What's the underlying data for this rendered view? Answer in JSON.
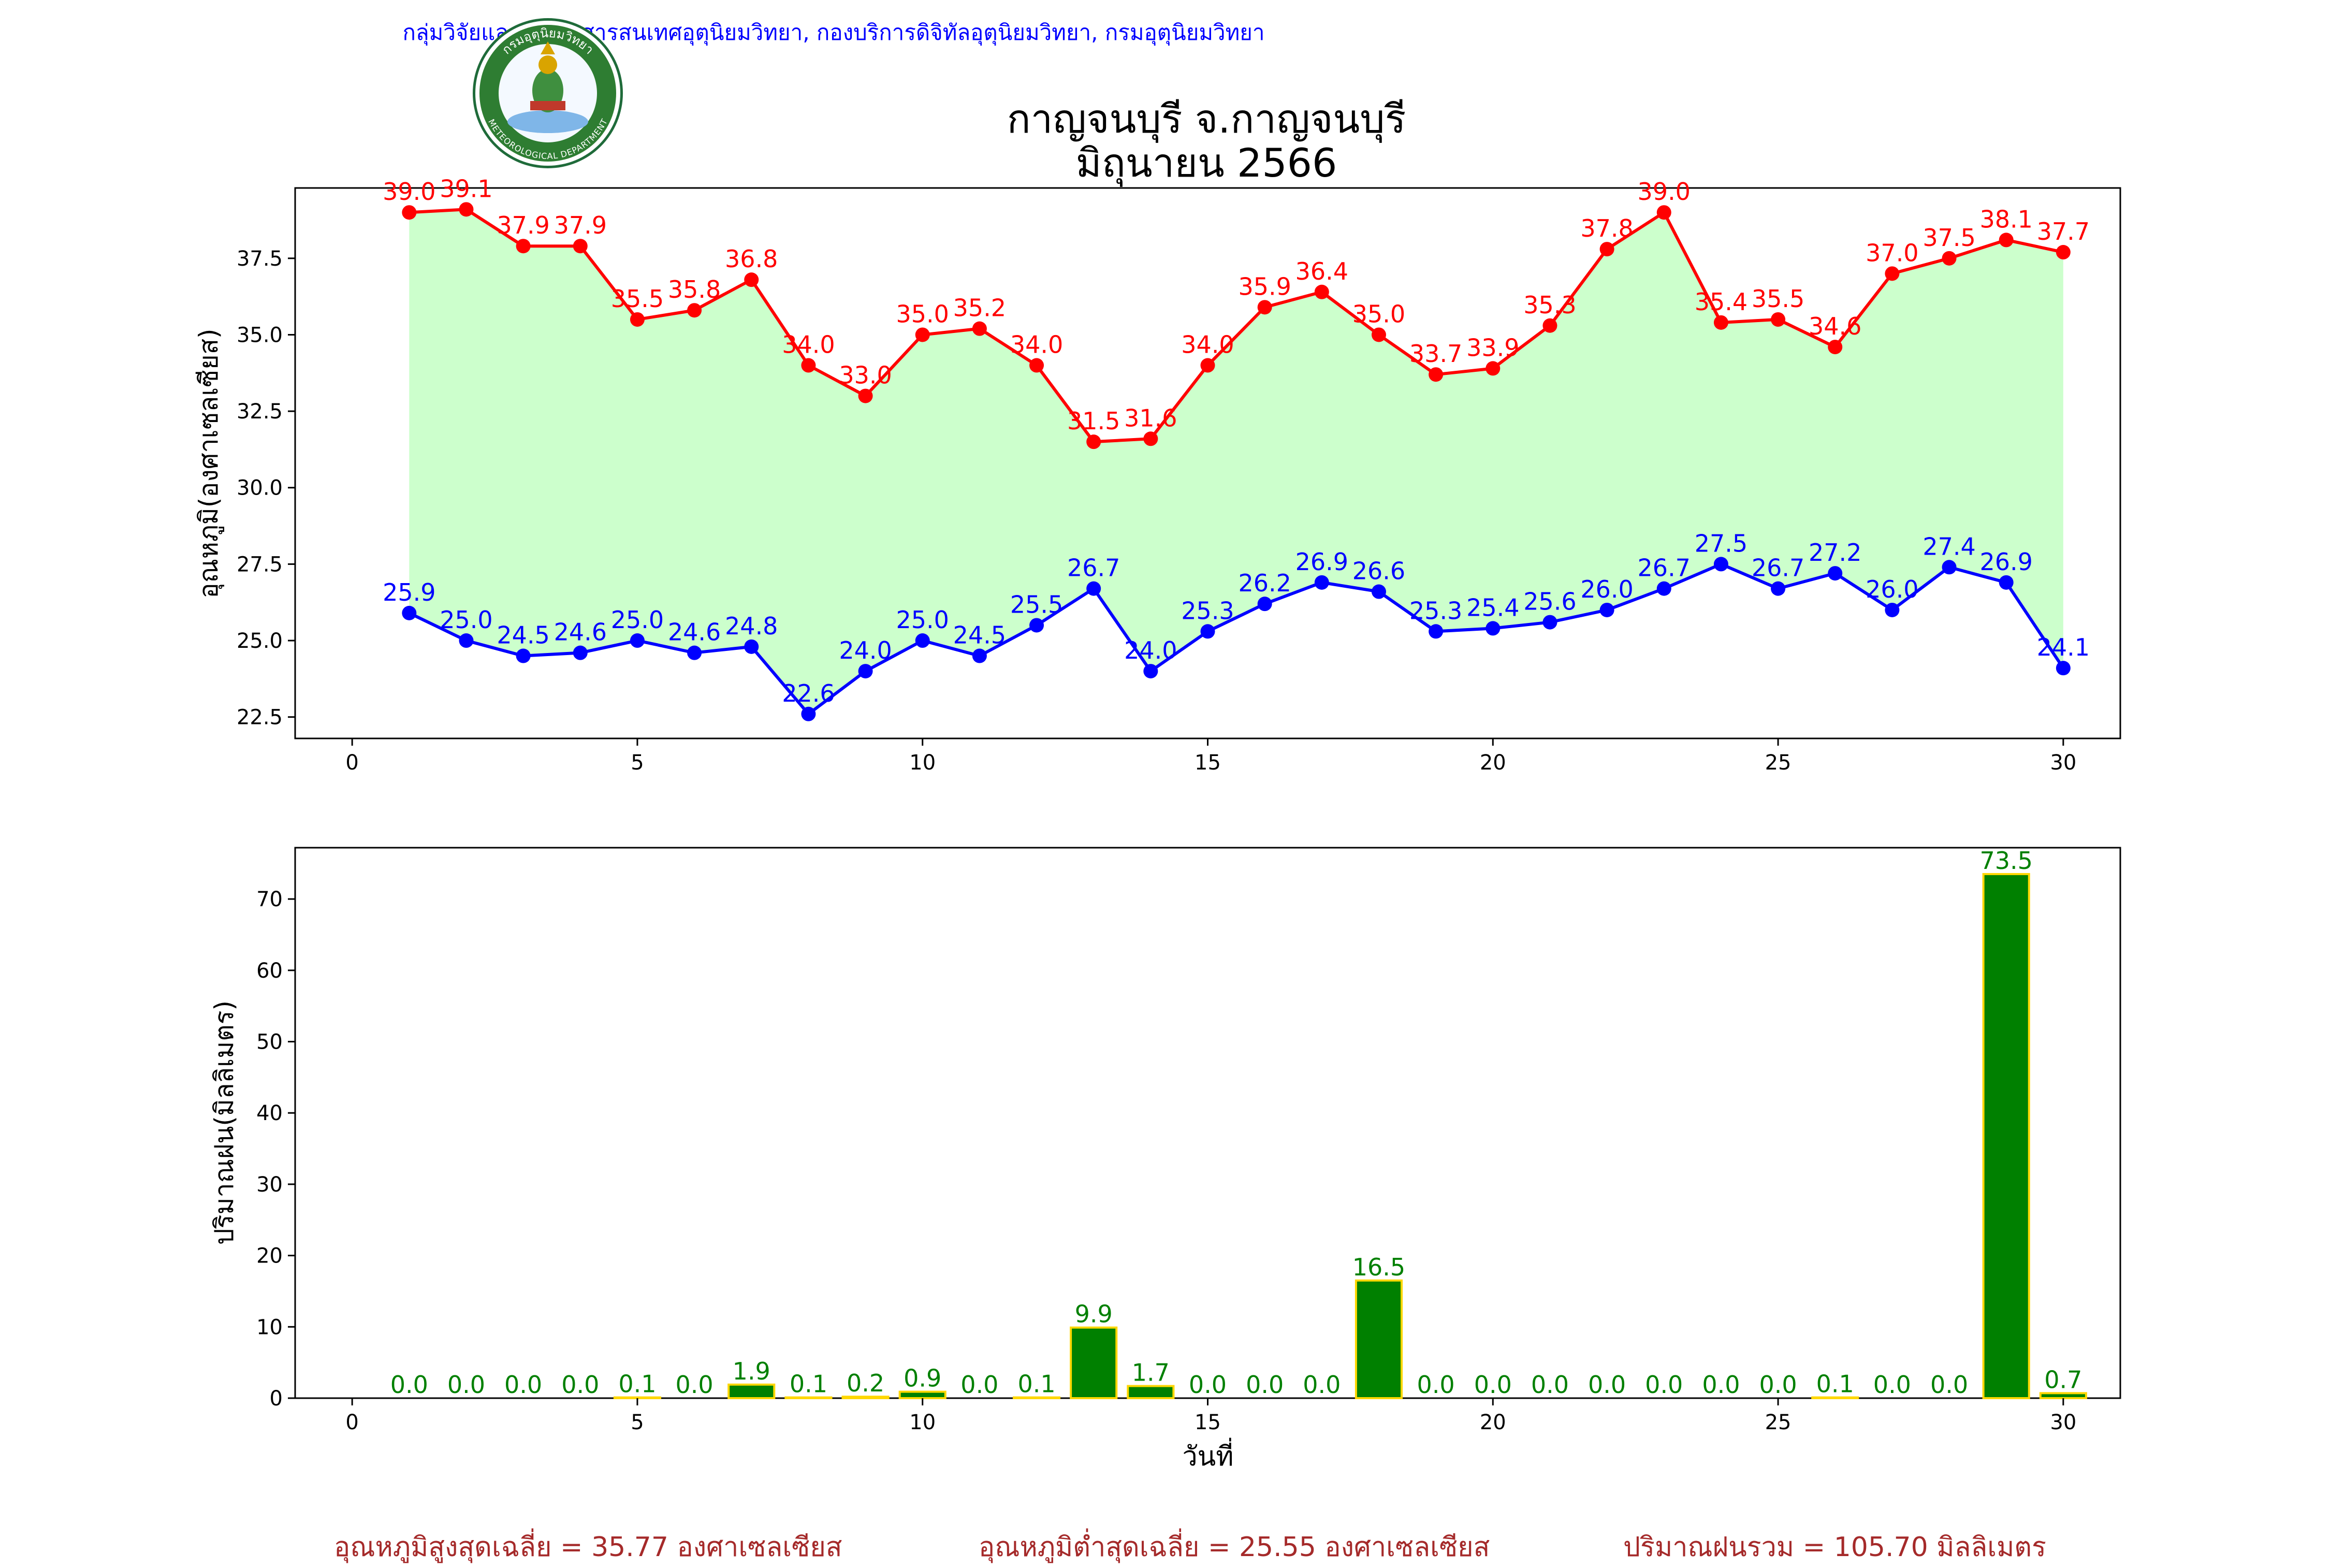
{
  "header": {
    "org_line": "กลุ่มวิจัยและพัฒนาสารสนเทศอุตุนิยมวิทยา, กองบริการดิจิทัลอุตุนิยมวิทยา, กรมอุตุนิยมวิทยา",
    "title_line1": "กาญจนบุรี จ.กาญจนบุรี",
    "title_line2": "มิถุนายน 2566",
    "logo": {
      "top_text": "กรมอุตุนิยมวิทยา",
      "bottom_text": "METEOROLOGICAL DEPARTMENT"
    }
  },
  "chart_data": [
    {
      "type": "line",
      "ylabel": "อุณหภูมิ(องศาเซลเซียส)",
      "xlabel": "",
      "xlim": [
        -1,
        31
      ],
      "ylim": [
        21.8,
        39.8
      ],
      "xticks": [
        0,
        5,
        10,
        15,
        20,
        25,
        30
      ],
      "yticks": [
        22.5,
        25.0,
        27.5,
        30.0,
        32.5,
        35.0,
        37.5
      ],
      "x": [
        1,
        2,
        3,
        4,
        5,
        6,
        7,
        8,
        9,
        10,
        11,
        12,
        13,
        14,
        15,
        16,
        17,
        18,
        19,
        20,
        21,
        22,
        23,
        24,
        25,
        26,
        27,
        28,
        29,
        30
      ],
      "series": [
        {
          "name": "",
          "color": "#ff0000",
          "values": [
            39.0,
            39.1,
            37.9,
            37.9,
            35.5,
            35.8,
            36.8,
            34.0,
            33.0,
            35.0,
            35.2,
            34.0,
            31.5,
            31.6,
            34.0,
            35.9,
            36.4,
            35.0,
            33.7,
            33.9,
            35.3,
            37.8,
            39.0,
            35.4,
            35.5,
            34.6,
            37.0,
            37.5,
            38.1,
            37.7
          ]
        },
        {
          "name": "",
          "color": "#0000ff",
          "values": [
            25.9,
            25.0,
            24.5,
            24.6,
            25.0,
            24.6,
            24.8,
            22.6,
            24.0,
            25.0,
            24.5,
            25.5,
            26.7,
            24.0,
            25.3,
            26.2,
            26.9,
            26.6,
            25.3,
            25.4,
            25.6,
            26.0,
            26.7,
            27.5,
            26.7,
            27.2,
            26.0,
            27.4,
            26.9,
            24.1
          ]
        }
      ],
      "fill_color": "#ccffcc"
    },
    {
      "type": "bar",
      "ylabel": "ปริมาณฝน(มิลลิเมตร)",
      "xlabel": "วันที่",
      "xlim": [
        -1,
        31
      ],
      "ylim": [
        0,
        77.2
      ],
      "xticks": [
        0,
        5,
        10,
        15,
        20,
        25,
        30
      ],
      "yticks": [
        0,
        10,
        20,
        30,
        40,
        50,
        60,
        70
      ],
      "x": [
        1,
        2,
        3,
        4,
        5,
        6,
        7,
        8,
        9,
        10,
        11,
        12,
        13,
        14,
        15,
        16,
        17,
        18,
        19,
        20,
        21,
        22,
        23,
        24,
        25,
        26,
        27,
        28,
        29,
        30
      ],
      "values": [
        0.0,
        0.0,
        0.0,
        0.0,
        0.1,
        0.0,
        1.9,
        0.1,
        0.2,
        0.9,
        0.0,
        0.1,
        9.9,
        1.7,
        0.0,
        0.0,
        0.0,
        16.5,
        0.0,
        0.0,
        0.0,
        0.0,
        0.0,
        0.0,
        0.0,
        0.1,
        0.0,
        0.0,
        73.5,
        0.7
      ],
      "bar_color": "#008000",
      "edge_color": "#ffd700"
    }
  ],
  "footer": {
    "max_avg": "อุณหภูมิสูงสุดเฉลี่ย = 35.77 องศาเซลเซียส",
    "min_avg": "อุณหภูมิต่ำสุดเฉลี่ย = 25.55 องศาเซลเซียส",
    "rain_total": "ปริมาณฝนรวม = 105.70 มิลลิเมตร"
  }
}
